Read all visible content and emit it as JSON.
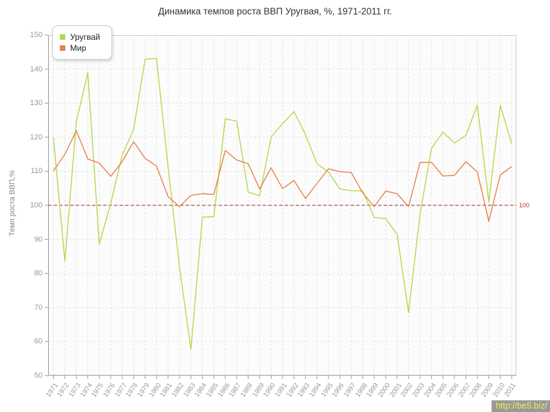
{
  "chart": {
    "title": "Динамика темпов роста ВВП Уругвая, %, 1971-2011 гг.",
    "ylabel": "Темп роста ВВП,%",
    "reference_label": "100",
    "watermark": "http://be5.biz/",
    "colors": {
      "uruguay_line": "#b9d64a",
      "world_line": "#e8814a",
      "reference_line": "#8e2938",
      "reference_text": "#c03434",
      "grid": "#e2e2e2",
      "axis": "#999999",
      "plot_background": "#fcfcfc",
      "plot_border": "#cccccc"
    }
  },
  "chart_data": {
    "type": "line",
    "title": "Динамика темпов роста ВВП Уругвая, %, 1971-2011 гг.",
    "xlabel": "",
    "ylabel": "Темп роста ВВП,%",
    "ylim": [
      50,
      150
    ],
    "yticks": [
      50,
      60,
      70,
      80,
      90,
      100,
      110,
      120,
      130,
      140,
      150
    ],
    "grid": true,
    "legend_position": "top-left",
    "reference_line": 100,
    "x": [
      1971,
      1972,
      1973,
      1974,
      1975,
      1976,
      1977,
      1978,
      1979,
      1980,
      1981,
      1982,
      1983,
      1984,
      1985,
      1986,
      1987,
      1988,
      1989,
      1990,
      1991,
      1992,
      1993,
      1994,
      1995,
      1996,
      1997,
      1998,
      1999,
      2000,
      2001,
      2002,
      2003,
      2004,
      2005,
      2006,
      2007,
      2008,
      2009,
      2010,
      2011
    ],
    "series": [
      {
        "name": "Уругвай",
        "color": "#b9d64a",
        "values": [
          120.0,
          83.6,
          124.5,
          139.0,
          88.6,
          100.5,
          114.7,
          122.3,
          142.9,
          143.1,
          111.5,
          82.0,
          57.7,
          96.5,
          96.7,
          125.4,
          124.7,
          103.9,
          102.8,
          120.0,
          124.0,
          127.5,
          120.8,
          112.2,
          109.8,
          104.8,
          104.3,
          104.2,
          96.4,
          96.1,
          91.5,
          68.5,
          97.5,
          116.7,
          121.5,
          118.3,
          120.5,
          129.4,
          100.9,
          129.4,
          118.1
        ]
      },
      {
        "name": "Мир",
        "color": "#e8814a",
        "values": [
          110.1,
          115.0,
          121.9,
          113.6,
          112.4,
          108.5,
          112.8,
          118.7,
          113.8,
          111.5,
          102.6,
          99.6,
          102.9,
          103.4,
          103.2,
          116.1,
          113.3,
          112.2,
          104.8,
          111.0,
          104.9,
          107.3,
          102.0,
          106.4,
          110.7,
          109.9,
          109.6,
          103.6,
          99.6,
          104.2,
          103.4,
          99.6,
          112.6,
          112.6,
          108.6,
          108.8,
          112.8,
          109.8,
          95.3,
          108.9,
          111.4
        ]
      }
    ]
  }
}
